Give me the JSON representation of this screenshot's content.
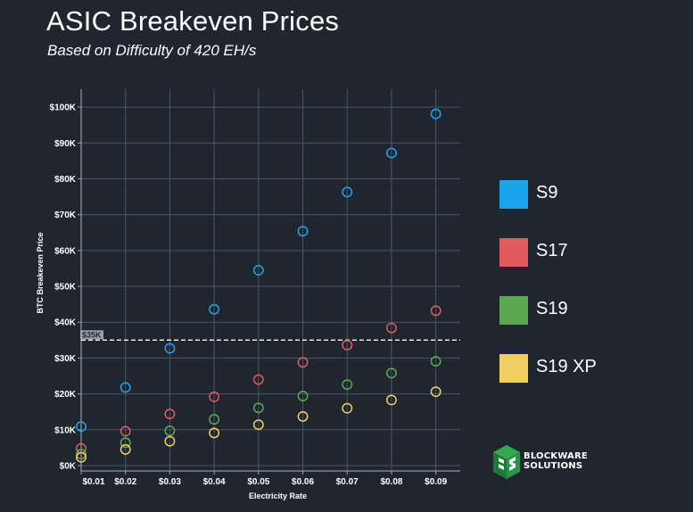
{
  "header": {
    "title": "ASIC Breakeven Prices",
    "subtitle": "Based on Difficulty of 420 EH/s"
  },
  "colors": {
    "background": "#1f2630",
    "S9": "#1aa5f0",
    "S17": "#e45a5f",
    "S19": "#5aa84e",
    "S19 XP": "#f2cf64",
    "reference_line": "#ffffff"
  },
  "logo": {
    "line1": "BLOCKWARE",
    "line2": "SOLUTIONS"
  },
  "chart_data": {
    "type": "scatter",
    "title": "ASIC Breakeven Prices",
    "subtitle": "Based on Difficulty of 420 EH/s",
    "xlabel": "Electricity Rate",
    "ylabel": "BTC Breakeven Price",
    "x": [
      0.01,
      0.02,
      0.03,
      0.04,
      0.05,
      0.06,
      0.07,
      0.08,
      0.09
    ],
    "x_tick_labels": [
      "$0.01",
      "$0.02",
      "$0.03",
      "$0.04",
      "$0.05",
      "$0.06",
      "$0.07",
      "$0.08",
      "$0.09"
    ],
    "y_tick_values": [
      0,
      10000,
      20000,
      30000,
      40000,
      50000,
      60000,
      70000,
      80000,
      90000,
      100000
    ],
    "y_tick_labels": [
      "$0K",
      "$10K",
      "$20K",
      "$30K",
      "$40K",
      "$50K",
      "$60K",
      "$70K",
      "$80K",
      "$90K",
      "$100K"
    ],
    "xlim": [
      0.01,
      0.0955
    ],
    "ylim": [
      -1500,
      105000
    ],
    "grid": true,
    "legend_position": "right",
    "marker": "hollow-circle",
    "reference_line": {
      "y": 35000,
      "label": "$35K",
      "style": "dashed"
    },
    "series": [
      {
        "name": "S9",
        "values": [
          10900,
          21800,
          32700,
          43600,
          54500,
          65400,
          76300,
          87200,
          98100
        ]
      },
      {
        "name": "S17",
        "values": [
          4800,
          9600,
          14400,
          19200,
          24000,
          28800,
          33600,
          38400,
          43200
        ]
      },
      {
        "name": "S19",
        "values": [
          3200,
          6400,
          9700,
          12900,
          16100,
          19400,
          22600,
          25800,
          29100
        ]
      },
      {
        "name": "S19 XP",
        "values": [
          2300,
          4500,
          6800,
          9100,
          11400,
          13700,
          16000,
          18300,
          20600
        ]
      }
    ]
  }
}
